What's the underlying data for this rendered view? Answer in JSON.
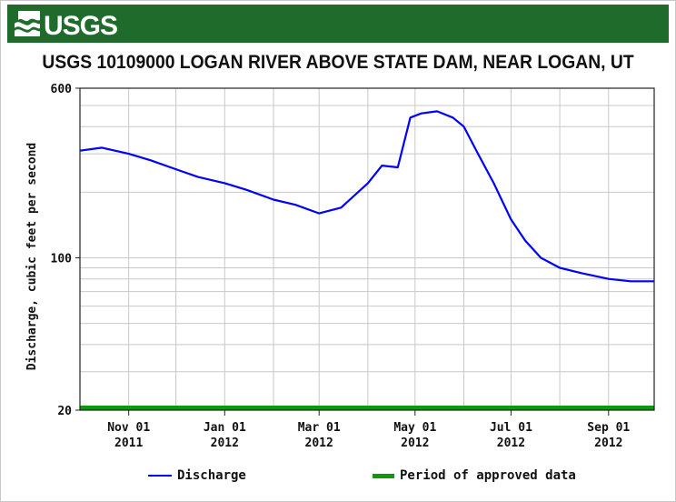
{
  "header": {
    "logo_text": "USGS",
    "banner_color": "#1e6b2c"
  },
  "chart_data": {
    "type": "line",
    "title": "USGS 10109000 LOGAN RIVER ABOVE STATE DAM, NEAR LOGAN, UT",
    "ylabel": "Discharge, cubic feet per second",
    "xlabel": "",
    "y_scale": "log",
    "ylim": [
      20,
      600
    ],
    "y_ticks": [
      "600",
      "100",
      "20"
    ],
    "x_ticks": [
      {
        "month": "Nov 01",
        "year": "2011"
      },
      {
        "month": "Jan 01",
        "year": "2012"
      },
      {
        "month": "Mar 01",
        "year": "2012"
      },
      {
        "month": "May 01",
        "year": "2012"
      },
      {
        "month": "Jul 01",
        "year": "2012"
      },
      {
        "month": "Sep 01",
        "year": "2012"
      }
    ],
    "xlim": [
      "2011-10-01",
      "2012-09-30"
    ],
    "grid": true,
    "legend_position": "bottom",
    "series": [
      {
        "name": "Discharge",
        "color": "#0000ff",
        "x": [
          "2011-10-01",
          "2011-10-15",
          "2011-11-01",
          "2011-11-15",
          "2011-12-01",
          "2011-12-15",
          "2012-01-01",
          "2012-01-15",
          "2012-02-01",
          "2012-02-15",
          "2012-03-01",
          "2012-03-15",
          "2012-04-01",
          "2012-04-10",
          "2012-04-20",
          "2012-04-28",
          "2012-05-05",
          "2012-05-15",
          "2012-05-25",
          "2012-06-01",
          "2012-06-10",
          "2012-06-20",
          "2012-07-01",
          "2012-07-10",
          "2012-07-20",
          "2012-08-01",
          "2012-08-15",
          "2012-09-01",
          "2012-09-15",
          "2012-09-30"
        ],
        "values": [
          310,
          320,
          300,
          280,
          255,
          235,
          220,
          205,
          185,
          175,
          160,
          170,
          220,
          265,
          260,
          440,
          460,
          470,
          440,
          400,
          300,
          220,
          150,
          120,
          100,
          90,
          85,
          80,
          78,
          78
        ]
      },
      {
        "name": "Period of approved data",
        "color": "#0a9a0a",
        "x": [
          "2011-10-01",
          "2012-09-30"
        ],
        "values": [
          20,
          20
        ]
      }
    ]
  },
  "legend": {
    "discharge_label": "Discharge",
    "approved_label": "Period of approved data"
  }
}
